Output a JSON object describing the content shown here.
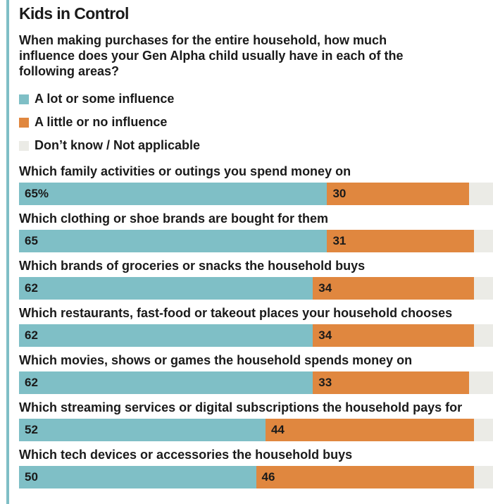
{
  "chart_data": {
    "type": "bar",
    "orientation": "horizontal",
    "stacked": true,
    "title": "Kids in Control",
    "subtitle": "When making purchases for the entire household, how much influence does your Gen Alpha child usually have in each of the following areas?",
    "legend": [
      {
        "name": "A lot or some influence",
        "color": "#7fbfc6"
      },
      {
        "name": "A little or no influence",
        "color": "#e0873f"
      },
      {
        "name": "Don’t know / Not applicable",
        "color": "#ebebe6"
      }
    ],
    "xlim": [
      0,
      100
    ],
    "categories": [
      "Which family activities or outings you spend money on",
      "Which clothing or shoe brands are bought for them",
      "Which brands of groceries or snacks the household buys",
      "Which restaurants, fast-food or takeout places your household chooses",
      "Which movies, shows or games the household spends money on",
      "Which streaming services or digital subscriptions the household pays for",
      "Which tech devices or accessories the household buys"
    ],
    "series": [
      {
        "name": "A lot or some influence",
        "values": [
          65,
          65,
          62,
          62,
          62,
          52,
          50
        ],
        "labels": [
          "65%",
          "65",
          "62",
          "62",
          "62",
          "52",
          "50"
        ]
      },
      {
        "name": "A little or no influence",
        "values": [
          30,
          31,
          34,
          34,
          33,
          44,
          46
        ],
        "labels": [
          "30",
          "31",
          "34",
          "34",
          "33",
          "44",
          "46"
        ]
      },
      {
        "name": "Don’t know / Not applicable",
        "values": [
          5,
          4,
          4,
          4,
          5,
          4,
          4
        ],
        "labels": [
          "",
          "",
          "",
          "",
          "",
          "",
          ""
        ]
      }
    ]
  }
}
